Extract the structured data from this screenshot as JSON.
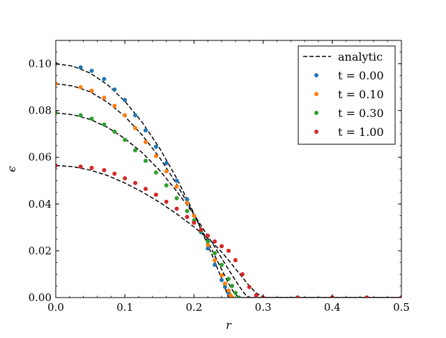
{
  "chart_data": {
    "type": "scatter",
    "xlabel": "r",
    "ylabel": "ϵ",
    "xlim": [
      0.0,
      0.5
    ],
    "ylim": [
      0.0,
      0.11
    ],
    "xticks": [
      "0.0",
      "0.1",
      "0.2",
      "0.3",
      "0.4",
      "0.5"
    ],
    "yticks": [
      "0.00",
      "0.02",
      "0.04",
      "0.06",
      "0.08",
      "0.10"
    ],
    "grid": false,
    "legend_location": "top-right",
    "series": [
      {
        "name": "analytic",
        "style": "dashed-line",
        "color": "#000000",
        "curves": [
          {
            "x": [
              0.0,
              0.025,
              0.05,
              0.075,
              0.1,
              0.125,
              0.15,
              0.175,
              0.2,
              0.225,
              0.24,
              0.25,
              0.255,
              0.26,
              0.28,
              0.3,
              0.5
            ],
            "y": [
              0.1,
              0.099,
              0.096,
              0.091,
              0.084,
              0.075,
              0.064,
              0.051,
              0.036,
              0.019,
              0.008,
              0.0,
              0.0,
              0.0,
              0.0,
              0.0,
              0.0
            ]
          },
          {
            "x": [
              0.0,
              0.025,
              0.05,
              0.075,
              0.1,
              0.125,
              0.15,
              0.175,
              0.2,
              0.225,
              0.24,
              0.25,
              0.258,
              0.265,
              0.28,
              0.3,
              0.5
            ],
            "y": [
              0.0915,
              0.0905,
              0.088,
              0.0835,
              0.0775,
              0.0695,
              0.06,
              0.0485,
              0.0355,
              0.021,
              0.012,
              0.006,
              0.002,
              0.0,
              0.0,
              0.0,
              0.0
            ]
          },
          {
            "x": [
              0.0,
              0.025,
              0.05,
              0.075,
              0.1,
              0.125,
              0.15,
              0.175,
              0.2,
              0.225,
              0.25,
              0.265,
              0.275,
              0.28,
              0.3,
              0.5
            ],
            "y": [
              0.079,
              0.0782,
              0.0762,
              0.0728,
              0.068,
              0.062,
              0.0545,
              0.0455,
              0.0355,
              0.024,
              0.012,
              0.005,
              0.001,
              0.0,
              0.0,
              0.0
            ]
          },
          {
            "x": [
              0.0,
              0.025,
              0.05,
              0.075,
              0.1,
              0.125,
              0.15,
              0.175,
              0.2,
              0.225,
              0.24,
              0.25,
              0.265,
              0.28,
              0.29,
              0.3,
              0.5
            ],
            "y": [
              0.0565,
              0.056,
              0.0545,
              0.0522,
              0.049,
              0.0452,
              0.0408,
              0.0358,
              0.0302,
              0.024,
              0.0195,
              0.016,
              0.0105,
              0.005,
              0.002,
              0.0,
              0.0
            ]
          }
        ]
      },
      {
        "name": "t = 0.00",
        "style": "points",
        "color": "#1f77b4",
        "x": [
          0.0,
          0.036,
          0.052,
          0.07,
          0.085,
          0.1,
          0.115,
          0.13,
          0.145,
          0.16,
          0.175,
          0.19,
          0.2,
          0.21,
          0.22,
          0.23,
          0.24,
          0.245,
          0.25,
          0.253,
          0.255,
          0.3,
          0.35,
          0.4,
          0.45,
          0.5
        ],
        "y": [
          0.1,
          0.0985,
          0.097,
          0.0935,
          0.089,
          0.0845,
          0.078,
          0.0715,
          0.0645,
          0.0575,
          0.05,
          0.042,
          0.035,
          0.028,
          0.021,
          0.014,
          0.0075,
          0.0045,
          0.002,
          0.0005,
          0.0,
          0.0,
          0.0,
          0.0,
          0.0,
          0.0
        ]
      },
      {
        "name": "t = 0.10",
        "style": "points",
        "color": "#ff7f0e",
        "x": [
          0.0,
          0.036,
          0.052,
          0.07,
          0.085,
          0.1,
          0.115,
          0.13,
          0.145,
          0.16,
          0.175,
          0.19,
          0.2,
          0.21,
          0.22,
          0.23,
          0.24,
          0.245,
          0.25,
          0.253,
          0.255,
          0.3,
          0.35,
          0.4,
          0.45,
          0.5
        ],
        "y": [
          0.0915,
          0.09,
          0.0885,
          0.0855,
          0.082,
          0.078,
          0.0725,
          0.0665,
          0.0605,
          0.054,
          0.0475,
          0.0405,
          0.035,
          0.029,
          0.0225,
          0.016,
          0.0095,
          0.006,
          0.003,
          0.001,
          0.0,
          0.0,
          0.0,
          0.0,
          0.0,
          0.0
        ]
      },
      {
        "name": "t = 0.30",
        "style": "points",
        "color": "#2ca02c",
        "x": [
          0.0,
          0.036,
          0.052,
          0.07,
          0.085,
          0.1,
          0.115,
          0.13,
          0.145,
          0.16,
          0.175,
          0.19,
          0.2,
          0.21,
          0.22,
          0.23,
          0.24,
          0.25,
          0.255,
          0.26,
          0.265,
          0.3,
          0.35,
          0.4,
          0.45,
          0.5
        ],
        "y": [
          0.079,
          0.078,
          0.0765,
          0.074,
          0.071,
          0.0675,
          0.063,
          0.0585,
          0.0535,
          0.048,
          0.0425,
          0.037,
          0.033,
          0.0285,
          0.024,
          0.019,
          0.014,
          0.008,
          0.005,
          0.002,
          0.0,
          0.0,
          0.0,
          0.0,
          0.0,
          0.0
        ]
      },
      {
        "name": "t = 1.00",
        "style": "points",
        "color": "#d62728",
        "x": [
          0.0,
          0.036,
          0.052,
          0.07,
          0.085,
          0.1,
          0.115,
          0.13,
          0.145,
          0.16,
          0.175,
          0.19,
          0.2,
          0.21,
          0.22,
          0.23,
          0.24,
          0.25,
          0.26,
          0.27,
          0.28,
          0.29,
          0.3,
          0.35,
          0.4,
          0.45,
          0.5
        ],
        "y": [
          0.0565,
          0.056,
          0.0555,
          0.0545,
          0.053,
          0.051,
          0.049,
          0.0465,
          0.044,
          0.041,
          0.038,
          0.0345,
          0.032,
          0.029,
          0.0265,
          0.024,
          0.022,
          0.02,
          0.016,
          0.01,
          0.0045,
          0.001,
          0.0,
          0.0,
          0.0,
          0.0,
          0.0
        ]
      }
    ]
  }
}
